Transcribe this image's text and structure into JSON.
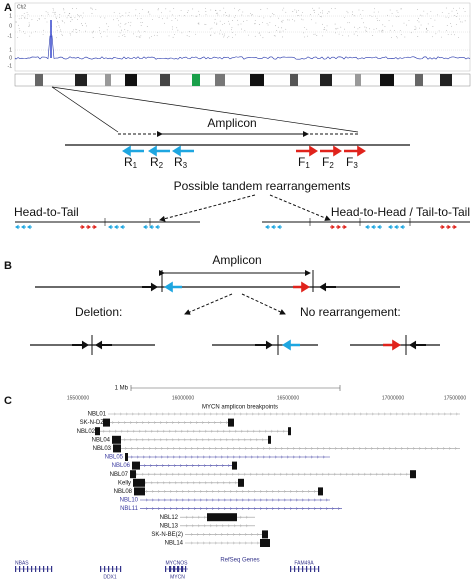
{
  "panel_a": {
    "label": "A",
    "chromosome": "Ch2",
    "axis_labels": [
      "1",
      "0",
      "-1",
      "1",
      "0",
      "-1"
    ],
    "amplicon": "Amplicon",
    "reverse_primers": [
      {
        "letter": "R",
        "sub": "1"
      },
      {
        "letter": "R",
        "sub": "2"
      },
      {
        "letter": "R",
        "sub": "3"
      }
    ],
    "forward_primers": [
      {
        "letter": "F",
        "sub": "1"
      },
      {
        "letter": "F",
        "sub": "2"
      },
      {
        "letter": "F",
        "sub": "3"
      }
    ],
    "possible": "Possible tandem rearrangements",
    "head_to_tail": "Head-to-Tail",
    "head_to_head": "Head-to-Head / Tail-to-Tail"
  },
  "panel_b": {
    "label": "B",
    "amplicon": "Amplicon",
    "deletion": "Deletion:",
    "no_rearrangement": "No rearrangement:"
  },
  "panel_c": {
    "label": "C",
    "scale": "1 Mb",
    "coordinates": [
      "15500000",
      "16000000",
      "16500000",
      "17000000",
      "17500000"
    ],
    "track_title": "MYCN amplicon breakpoints",
    "samples": [
      "NBL01",
      "SK-N-DZ",
      "NBL02",
      "NBL04",
      "NBL03",
      "NBL05",
      "NBL06",
      "NBL07",
      "Kelly",
      "NBL08",
      "NBL10",
      "NBL11",
      "NBL12",
      "NBL13",
      "SK-N-BE(2)",
      "NBL14"
    ],
    "genes_title": "RefSeq Genes",
    "genes": [
      "NBAS",
      "DDX1",
      "MYCNOS",
      "MYCN",
      "FAM49A"
    ]
  }
}
